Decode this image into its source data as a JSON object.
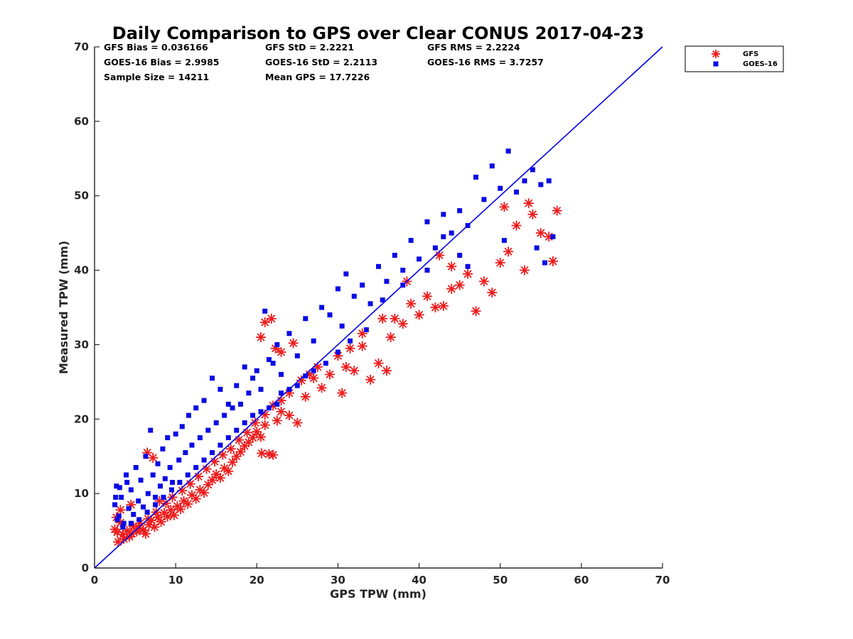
{
  "chart_data": {
    "type": "scatter",
    "title": "Daily Comparison to GPS over Clear CONUS 2017-04-23",
    "xlabel": "GPS TPW (mm)",
    "ylabel": "Measured TPW (mm)",
    "xlim": [
      0,
      70
    ],
    "ylim": [
      0,
      70
    ],
    "xticks": [
      "0",
      "10",
      "20",
      "30",
      "40",
      "50",
      "60",
      "70"
    ],
    "yticks": [
      "0",
      "10",
      "20",
      "30",
      "40",
      "50",
      "60",
      "70"
    ],
    "grid": false,
    "legend_position": "outside-top-right",
    "stats": [
      [
        "GFS Bias = 0.036166",
        "GFS StD = 2.2221",
        "GFS RMS = 2.2224"
      ],
      [
        "GOES-16 Bias = 2.9985",
        "GOES-16 StD = 2.2113",
        "GOES-16 RMS = 3.7257"
      ],
      [
        "Sample Size = 14211",
        "Mean GPS = 17.7226",
        ""
      ]
    ],
    "one_to_one_line": {
      "x": [
        0,
        70
      ],
      "y": [
        0,
        70
      ],
      "color": "#0000ee"
    },
    "series": [
      {
        "name": "GFS",
        "marker": "asterisk",
        "color": "#ee1c1c",
        "points": [
          [
            2.5,
            5.2
          ],
          [
            2.8,
            4.8
          ],
          [
            3.2,
            6.1
          ],
          [
            3.5,
            4.5
          ],
          [
            4.0,
            5.0
          ],
          [
            4.3,
            4.2
          ],
          [
            4.8,
            5.6
          ],
          [
            5.2,
            4.9
          ],
          [
            5.6,
            6.0
          ],
          [
            6.0,
            5.1
          ],
          [
            6.3,
            4.6
          ],
          [
            6.7,
            5.8
          ],
          [
            7.0,
            6.4
          ],
          [
            7.4,
            5.5
          ],
          [
            7.8,
            6.8
          ],
          [
            8.2,
            6.2
          ],
          [
            8.6,
            7.4
          ],
          [
            9.0,
            6.9
          ],
          [
            9.4,
            7.8
          ],
          [
            9.8,
            7.1
          ],
          [
            10.2,
            8.3
          ],
          [
            10.6,
            7.9
          ],
          [
            11.0,
            9.0
          ],
          [
            11.5,
            8.6
          ],
          [
            12.0,
            9.8
          ],
          [
            12.5,
            9.3
          ],
          [
            13.0,
            10.5
          ],
          [
            13.5,
            10.1
          ],
          [
            14.0,
            11.2
          ],
          [
            14.5,
            11.8
          ],
          [
            15.0,
            12.6
          ],
          [
            15.5,
            12.1
          ],
          [
            16.0,
            13.4
          ],
          [
            16.5,
            13.0
          ],
          [
            17.0,
            14.2
          ],
          [
            17.5,
            15.0
          ],
          [
            18.0,
            15.6
          ],
          [
            18.5,
            16.4
          ],
          [
            19.0,
            16.9
          ],
          [
            19.5,
            17.5
          ],
          [
            20.0,
            18.3
          ],
          [
            20.5,
            17.6
          ],
          [
            21.0,
            19.2
          ],
          [
            21.5,
            15.3
          ],
          [
            22.0,
            15.2
          ],
          [
            20.6,
            15.4
          ],
          [
            22.5,
            19.8
          ],
          [
            23.0,
            21.0
          ],
          [
            24.0,
            20.5
          ],
          [
            25.0,
            19.5
          ],
          [
            20.5,
            31.0
          ],
          [
            21.0,
            33.0
          ],
          [
            21.8,
            33.5
          ],
          [
            22.3,
            29.5
          ],
          [
            23.0,
            29.0
          ],
          [
            24.5,
            30.2
          ],
          [
            26.0,
            23.0
          ],
          [
            27.0,
            25.5
          ],
          [
            28.0,
            24.2
          ],
          [
            29.0,
            26.0
          ],
          [
            30.0,
            28.5
          ],
          [
            30.5,
            23.5
          ],
          [
            31.0,
            27.0
          ],
          [
            32.0,
            26.5
          ],
          [
            33.0,
            29.8
          ],
          [
            34.0,
            25.3
          ],
          [
            35.0,
            27.5
          ],
          [
            36.0,
            26.5
          ],
          [
            36.5,
            31.0
          ],
          [
            37.0,
            33.5
          ],
          [
            38.0,
            32.8
          ],
          [
            39.0,
            35.5
          ],
          [
            40.0,
            34.0
          ],
          [
            41.0,
            36.5
          ],
          [
            42.0,
            35.0
          ],
          [
            43.0,
            35.2
          ],
          [
            44.0,
            37.5
          ],
          [
            45.0,
            38.0
          ],
          [
            46.0,
            39.5
          ],
          [
            47.0,
            34.5
          ],
          [
            48.0,
            38.5
          ],
          [
            49.0,
            37.0
          ],
          [
            50.0,
            41.0
          ],
          [
            51.0,
            42.5
          ],
          [
            52.0,
            46.0
          ],
          [
            53.0,
            40.0
          ],
          [
            54.0,
            47.5
          ],
          [
            55.0,
            45.0
          ],
          [
            56.0,
            44.5
          ],
          [
            56.5,
            41.2
          ],
          [
            57.0,
            48.0
          ],
          [
            53.5,
            49.0
          ],
          [
            50.5,
            48.5
          ],
          [
            44.0,
            40.5
          ],
          [
            42.5,
            42.0
          ],
          [
            38.5,
            38.5
          ],
          [
            35.5,
            33.5
          ],
          [
            33.0,
            31.5
          ],
          [
            31.5,
            29.5
          ],
          [
            27.5,
            27.0
          ],
          [
            26.5,
            26.0
          ],
          [
            25.5,
            25.2
          ],
          [
            24.0,
            23.5
          ],
          [
            23.0,
            22.5
          ],
          [
            22.0,
            21.8
          ],
          [
            21.0,
            20.6
          ],
          [
            19.8,
            19.5
          ],
          [
            18.8,
            18.2
          ],
          [
            17.8,
            17.2
          ],
          [
            16.8,
            16.0
          ],
          [
            15.8,
            15.2
          ],
          [
            14.8,
            14.3
          ],
          [
            13.8,
            13.3
          ],
          [
            12.8,
            12.3
          ],
          [
            11.8,
            11.3
          ],
          [
            10.8,
            10.4
          ],
          [
            9.6,
            9.5
          ],
          [
            8.8,
            8.7
          ],
          [
            7.6,
            7.5
          ],
          [
            6.6,
            6.6
          ],
          [
            5.5,
            5.4
          ],
          [
            4.6,
            4.6
          ],
          [
            3.6,
            3.9
          ],
          [
            2.9,
            3.5
          ],
          [
            6.5,
            15.5
          ],
          [
            7.2,
            14.8
          ],
          [
            3.2,
            7.8
          ],
          [
            2.7,
            6.8
          ],
          [
            4.5,
            8.5
          ],
          [
            8.0,
            9.0
          ]
        ]
      },
      {
        "name": "GOES-16",
        "marker": "square",
        "color": "#0a0ae6",
        "points": [
          [
            2.5,
            8.5
          ],
          [
            2.7,
            11.0
          ],
          [
            3.0,
            7.0
          ],
          [
            3.3,
            9.5
          ],
          [
            3.6,
            6.0
          ],
          [
            3.9,
            12.5
          ],
          [
            4.2,
            8.0
          ],
          [
            4.5,
            10.5
          ],
          [
            4.8,
            7.2
          ],
          [
            5.1,
            13.5
          ],
          [
            5.4,
            9.0
          ],
          [
            5.7,
            11.8
          ],
          [
            6.0,
            8.2
          ],
          [
            6.3,
            15.0
          ],
          [
            6.6,
            10.0
          ],
          [
            6.9,
            18.5
          ],
          [
            7.2,
            12.5
          ],
          [
            7.5,
            9.5
          ],
          [
            7.8,
            14.0
          ],
          [
            8.1,
            11.0
          ],
          [
            8.4,
            16.0
          ],
          [
            8.7,
            12.0
          ],
          [
            9.0,
            17.5
          ],
          [
            9.3,
            13.5
          ],
          [
            9.6,
            11.5
          ],
          [
            10.0,
            18.0
          ],
          [
            10.4,
            14.5
          ],
          [
            10.8,
            19.0
          ],
          [
            11.2,
            15.5
          ],
          [
            11.6,
            20.5
          ],
          [
            12.0,
            16.5
          ],
          [
            12.5,
            21.5
          ],
          [
            13.0,
            17.5
          ],
          [
            13.5,
            22.5
          ],
          [
            14.0,
            18.5
          ],
          [
            14.5,
            25.5
          ],
          [
            15.0,
            19.5
          ],
          [
            15.5,
            24.0
          ],
          [
            16.0,
            20.5
          ],
          [
            16.5,
            22.0
          ],
          [
            17.0,
            21.5
          ],
          [
            17.5,
            24.5
          ],
          [
            18.0,
            22.0
          ],
          [
            18.5,
            27.0
          ],
          [
            19.0,
            23.5
          ],
          [
            19.5,
            25.5
          ],
          [
            20.0,
            26.5
          ],
          [
            20.5,
            24.0
          ],
          [
            21.0,
            34.5
          ],
          [
            21.5,
            28.0
          ],
          [
            22.0,
            27.5
          ],
          [
            22.5,
            30.0
          ],
          [
            23.0,
            26.0
          ],
          [
            24.0,
            31.5
          ],
          [
            25.0,
            28.5
          ],
          [
            26.0,
            33.5
          ],
          [
            27.0,
            30.5
          ],
          [
            28.0,
            35.0
          ],
          [
            29.0,
            34.0
          ],
          [
            30.0,
            37.5
          ],
          [
            30.5,
            32.5
          ],
          [
            31.0,
            39.5
          ],
          [
            32.0,
            36.5
          ],
          [
            33.0,
            38.0
          ],
          [
            34.0,
            35.5
          ],
          [
            35.0,
            40.5
          ],
          [
            36.0,
            38.5
          ],
          [
            37.0,
            42.0
          ],
          [
            38.0,
            40.0
          ],
          [
            39.0,
            44.0
          ],
          [
            40.0,
            41.5
          ],
          [
            41.0,
            46.5
          ],
          [
            42.0,
            43.0
          ],
          [
            43.0,
            47.5
          ],
          [
            44.0,
            45.0
          ],
          [
            45.0,
            48.0
          ],
          [
            46.0,
            46.0
          ],
          [
            47.0,
            52.5
          ],
          [
            48.0,
            49.5
          ],
          [
            49.0,
            54.0
          ],
          [
            50.0,
            51.0
          ],
          [
            51.0,
            56.0
          ],
          [
            52.0,
            50.5
          ],
          [
            53.0,
            52.0
          ],
          [
            54.0,
            53.5
          ],
          [
            55.0,
            51.5
          ],
          [
            56.0,
            52.0
          ],
          [
            56.5,
            44.5
          ],
          [
            54.5,
            43.0
          ],
          [
            55.5,
            41.0
          ],
          [
            50.5,
            44.0
          ],
          [
            46.0,
            40.5
          ],
          [
            45.0,
            42.0
          ],
          [
            43.0,
            44.5
          ],
          [
            41.0,
            40.0
          ],
          [
            38.0,
            38.0
          ],
          [
            35.5,
            36.0
          ],
          [
            33.5,
            32.0
          ],
          [
            31.5,
            30.5
          ],
          [
            30.0,
            29.0
          ],
          [
            28.5,
            27.5
          ],
          [
            27.0,
            26.5
          ],
          [
            26.0,
            25.8
          ],
          [
            25.0,
            24.5
          ],
          [
            24.0,
            24.0
          ],
          [
            23.0,
            23.5
          ],
          [
            22.5,
            22.0
          ],
          [
            21.5,
            21.5
          ],
          [
            20.5,
            21.0
          ],
          [
            19.5,
            20.5
          ],
          [
            18.5,
            19.5
          ],
          [
            17.5,
            18.5
          ],
          [
            16.5,
            17.5
          ],
          [
            15.5,
            16.5
          ],
          [
            14.5,
            15.5
          ],
          [
            13.5,
            14.5
          ],
          [
            12.5,
            13.5
          ],
          [
            11.5,
            12.5
          ],
          [
            10.5,
            11.5
          ],
          [
            9.5,
            10.5
          ],
          [
            8.5,
            9.5
          ],
          [
            7.5,
            8.5
          ],
          [
            6.5,
            7.5
          ],
          [
            5.5,
            6.5
          ],
          [
            4.5,
            6.0
          ],
          [
            3.5,
            5.5
          ],
          [
            2.8,
            6.5
          ],
          [
            2.6,
            9.5
          ],
          [
            3.1,
            10.8
          ],
          [
            4.0,
            11.5
          ]
        ]
      }
    ]
  }
}
